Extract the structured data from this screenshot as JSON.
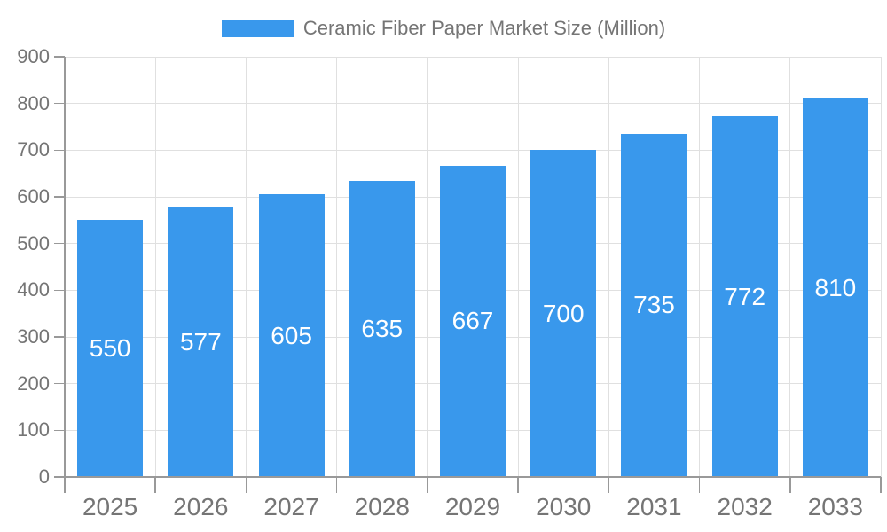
{
  "chart_data": {
    "type": "bar",
    "title": "Ceramic Fiber Paper Market Size (Million)",
    "legend": [
      {
        "label": "Ceramic Fiber Paper Market Size (Million)",
        "color": "#3998ec"
      }
    ],
    "legend_position": "top-center",
    "categories": [
      "2025",
      "2026",
      "2027",
      "2028",
      "2029",
      "2030",
      "2031",
      "2032",
      "2033"
    ],
    "series": [
      {
        "name": "Ceramic Fiber Paper Market Size (Million)",
        "color": "#3998ec",
        "values": [
          550,
          577,
          605,
          635,
          667,
          700,
          735,
          772,
          810
        ]
      }
    ],
    "value_labels_shown": true,
    "value_label_position": "middle-of-bar",
    "xlabel": "",
    "ylabel": "",
    "ylim": [
      0,
      900
    ],
    "ytick_step": 100,
    "ytick_labels": [
      "0",
      "100",
      "200",
      "300",
      "400",
      "500",
      "600",
      "700",
      "800",
      "900"
    ],
    "grid": true,
    "colors": {
      "bar": "#3998ec",
      "value_label": "#ffffff",
      "axis_line": "#999999",
      "axis_label": "#757575",
      "gridline": "#e0e0e0",
      "background": "#ffffff"
    }
  }
}
